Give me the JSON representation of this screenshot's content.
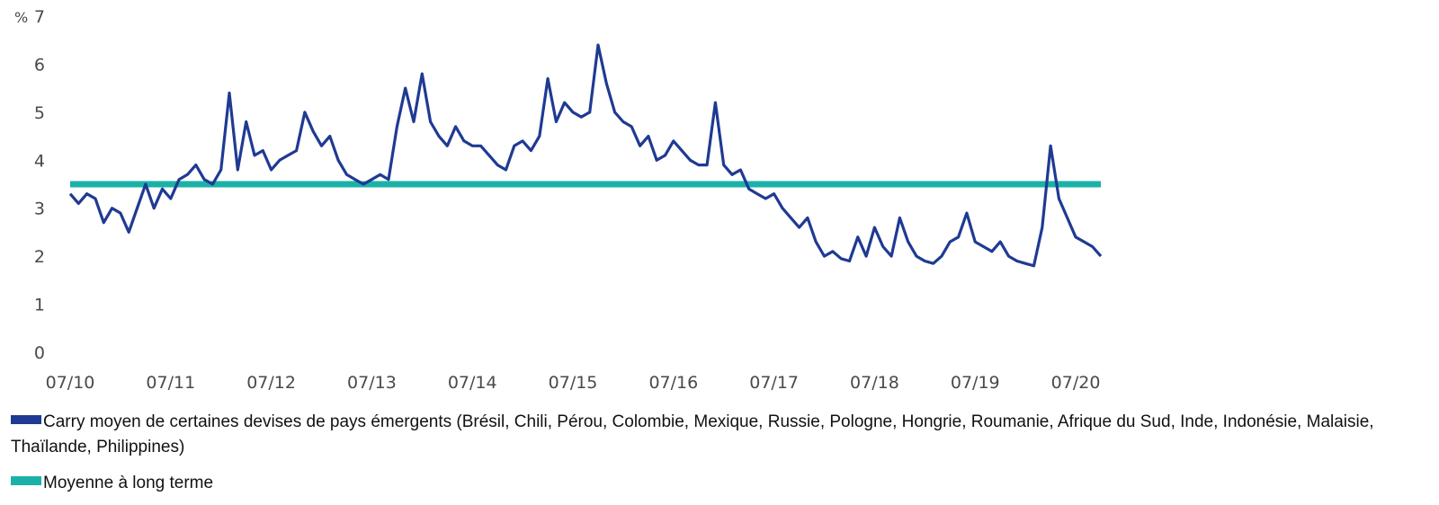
{
  "chart_data": {
    "type": "line",
    "y_unit": "%",
    "ylim": [
      0,
      7
    ],
    "y_ticks": [
      "0",
      "1",
      "2",
      "3",
      "4",
      "5",
      "6",
      "7"
    ],
    "x_ticks": [
      "07/10",
      "07/11",
      "07/12",
      "07/13",
      "07/14",
      "07/15",
      "07/16",
      "07/17",
      "07/18",
      "07/19",
      "07/20"
    ],
    "xlim": [
      "2010-07",
      "2020-10"
    ],
    "grid": false,
    "legend_position": "bottom",
    "series": [
      {
        "name": "Carry moyen de certaines devises de pays émergents (Brésil, Chili, Pérou, Colombie, Mexique, Russie, Pologne, Hongrie, Roumanie, Afrique du Sud, Inde, Indonésie, Malaisie, Thaïlande, Philippines)",
        "color": "#1f3a93",
        "points": [
          [
            "2010-07",
            3.3
          ],
          [
            "2010-08",
            3.1
          ],
          [
            "2010-09",
            3.3
          ],
          [
            "2010-10",
            3.2
          ],
          [
            "2010-11",
            2.7
          ],
          [
            "2010-12",
            3.0
          ],
          [
            "2011-01",
            2.9
          ],
          [
            "2011-02",
            2.5
          ],
          [
            "2011-03",
            3.0
          ],
          [
            "2011-04",
            3.5
          ],
          [
            "2011-05",
            3.0
          ],
          [
            "2011-06",
            3.4
          ],
          [
            "2011-07",
            3.2
          ],
          [
            "2011-08",
            3.6
          ],
          [
            "2011-09",
            3.7
          ],
          [
            "2011-10",
            3.9
          ],
          [
            "2011-11",
            3.6
          ],
          [
            "2011-12",
            3.5
          ],
          [
            "2012-01",
            3.8
          ],
          [
            "2012-02",
            5.4
          ],
          [
            "2012-03",
            3.8
          ],
          [
            "2012-04",
            4.8
          ],
          [
            "2012-05",
            4.1
          ],
          [
            "2012-06",
            4.2
          ],
          [
            "2012-07",
            3.8
          ],
          [
            "2012-08",
            4.0
          ],
          [
            "2012-09",
            4.1
          ],
          [
            "2012-10",
            4.2
          ],
          [
            "2012-11",
            5.0
          ],
          [
            "2012-12",
            4.6
          ],
          [
            "2013-01",
            4.3
          ],
          [
            "2013-02",
            4.5
          ],
          [
            "2013-03",
            4.0
          ],
          [
            "2013-04",
            3.7
          ],
          [
            "2013-05",
            3.6
          ],
          [
            "2013-06",
            3.5
          ],
          [
            "2013-07",
            3.6
          ],
          [
            "2013-08",
            3.7
          ],
          [
            "2013-09",
            3.6
          ],
          [
            "2013-10",
            4.7
          ],
          [
            "2013-11",
            5.5
          ],
          [
            "2013-12",
            4.8
          ],
          [
            "2014-01",
            5.8
          ],
          [
            "2014-02",
            4.8
          ],
          [
            "2014-03",
            4.5
          ],
          [
            "2014-04",
            4.3
          ],
          [
            "2014-05",
            4.7
          ],
          [
            "2014-06",
            4.4
          ],
          [
            "2014-07",
            4.3
          ],
          [
            "2014-08",
            4.3
          ],
          [
            "2014-09",
            4.1
          ],
          [
            "2014-10",
            3.9
          ],
          [
            "2014-11",
            3.8
          ],
          [
            "2014-12",
            4.3
          ],
          [
            "2015-01",
            4.4
          ],
          [
            "2015-02",
            4.2
          ],
          [
            "2015-03",
            4.5
          ],
          [
            "2015-04",
            5.7
          ],
          [
            "2015-05",
            4.8
          ],
          [
            "2015-06",
            5.2
          ],
          [
            "2015-07",
            5.0
          ],
          [
            "2015-08",
            4.9
          ],
          [
            "2015-09",
            5.0
          ],
          [
            "2015-10",
            6.4
          ],
          [
            "2015-11",
            5.6
          ],
          [
            "2015-12",
            5.0
          ],
          [
            "2016-01",
            4.8
          ],
          [
            "2016-02",
            4.7
          ],
          [
            "2016-03",
            4.3
          ],
          [
            "2016-04",
            4.5
          ],
          [
            "2016-05",
            4.0
          ],
          [
            "2016-06",
            4.1
          ],
          [
            "2016-07",
            4.4
          ],
          [
            "2016-08",
            4.2
          ],
          [
            "2016-09",
            4.0
          ],
          [
            "2016-10",
            3.9
          ],
          [
            "2016-11",
            3.9
          ],
          [
            "2016-12",
            5.2
          ],
          [
            "2017-01",
            3.9
          ],
          [
            "2017-02",
            3.7
          ],
          [
            "2017-03",
            3.8
          ],
          [
            "2017-04",
            3.4
          ],
          [
            "2017-05",
            3.3
          ],
          [
            "2017-06",
            3.2
          ],
          [
            "2017-07",
            3.3
          ],
          [
            "2017-08",
            3.0
          ],
          [
            "2017-09",
            2.8
          ],
          [
            "2017-10",
            2.6
          ],
          [
            "2017-11",
            2.8
          ],
          [
            "2017-12",
            2.3
          ],
          [
            "2018-01",
            2.0
          ],
          [
            "2018-02",
            2.1
          ],
          [
            "2018-03",
            1.95
          ],
          [
            "2018-04",
            1.9
          ],
          [
            "2018-05",
            2.4
          ],
          [
            "2018-06",
            2.0
          ],
          [
            "2018-07",
            2.6
          ],
          [
            "2018-08",
            2.2
          ],
          [
            "2018-09",
            2.0
          ],
          [
            "2018-10",
            2.8
          ],
          [
            "2018-11",
            2.3
          ],
          [
            "2018-12",
            2.0
          ],
          [
            "2019-01",
            1.9
          ],
          [
            "2019-02",
            1.85
          ],
          [
            "2019-03",
            2.0
          ],
          [
            "2019-04",
            2.3
          ],
          [
            "2019-05",
            2.4
          ],
          [
            "2019-06",
            2.9
          ],
          [
            "2019-07",
            2.3
          ],
          [
            "2019-08",
            2.2
          ],
          [
            "2019-09",
            2.1
          ],
          [
            "2019-10",
            2.3
          ],
          [
            "2019-11",
            2.0
          ],
          [
            "2019-12",
            1.9
          ],
          [
            "2020-01",
            1.85
          ],
          [
            "2020-02",
            1.8
          ],
          [
            "2020-03",
            2.6
          ],
          [
            "2020-04",
            4.3
          ],
          [
            "2020-05",
            3.2
          ],
          [
            "2020-06",
            2.8
          ],
          [
            "2020-07",
            2.4
          ],
          [
            "2020-08",
            2.3
          ],
          [
            "2020-09",
            2.2
          ],
          [
            "2020-10",
            2.0
          ]
        ]
      },
      {
        "name": "Moyenne à long terme",
        "color": "#1ab2a8",
        "points": [
          [
            "2010-07",
            3.5
          ],
          [
            "2020-10",
            3.5
          ]
        ]
      }
    ]
  }
}
